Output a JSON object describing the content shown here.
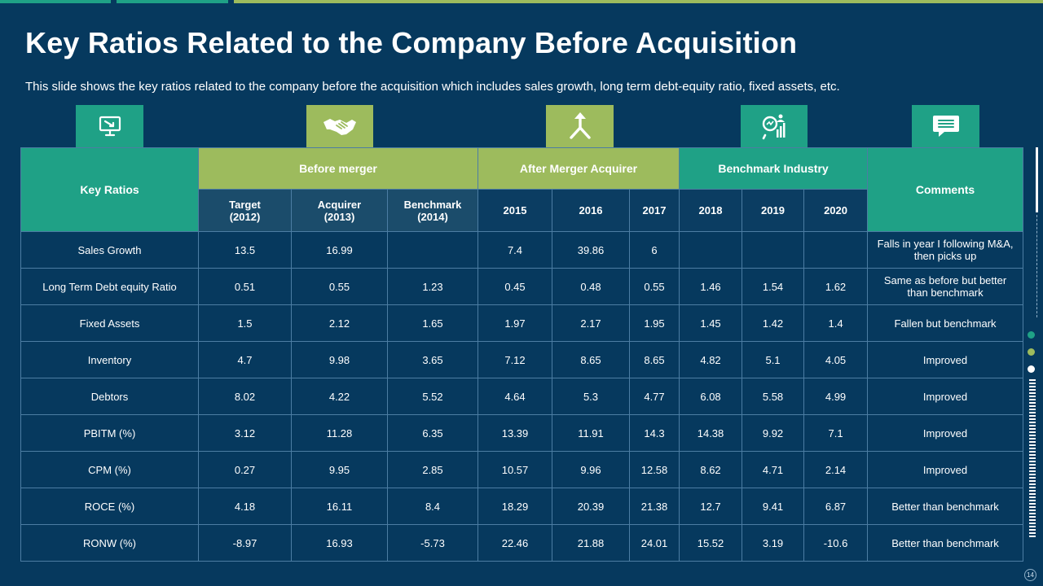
{
  "slide": {
    "title": "Key Ratios Related to the Company Before Acquisition",
    "subtitle": "This slide shows the key ratios related to the company before the acquisition which includes sales growth, long term debt-equity ratio, fixed assets, etc.",
    "page_number": "14"
  },
  "icons": [
    {
      "name": "presentation-screen-icon",
      "color": "#1fa186"
    },
    {
      "name": "handshake-icon",
      "color": "#9dbb5d"
    },
    {
      "name": "merge-arrows-icon",
      "color": "#9dbb5d"
    },
    {
      "name": "analytics-magnifier-icon",
      "color": "#1fa186"
    },
    {
      "name": "chat-bubble-icon",
      "color": "#1fa186"
    }
  ],
  "colors": {
    "background": "#06395e",
    "teal": "#1fa186",
    "green": "#9dbb5d"
  },
  "table": {
    "header": {
      "key_ratios": "Key Ratios",
      "before_merger": "Before merger",
      "after_merger": "After Merger Acquirer",
      "benchmark_industry": "Benchmark Industry",
      "comments": "Comments"
    },
    "subheaders": [
      {
        "line1": "Target",
        "line2": "(2012)"
      },
      {
        "line1": "Acquirer",
        "line2": "(2013)"
      },
      {
        "line1": "Benchmark",
        "line2": "(2014)"
      },
      {
        "line1": "2015",
        "line2": ""
      },
      {
        "line1": "2016",
        "line2": ""
      },
      {
        "line1": "2017",
        "line2": ""
      },
      {
        "line1": "2018",
        "line2": ""
      },
      {
        "line1": "2019",
        "line2": ""
      },
      {
        "line1": "2020",
        "line2": ""
      }
    ],
    "rows": [
      {
        "label": "Sales Growth",
        "values": [
          "13.5",
          "16.99",
          "",
          "7.4",
          "39.86",
          "6",
          "",
          "",
          ""
        ],
        "comment": "Falls in year I following M&A, then picks up"
      },
      {
        "label": "Long Term  Debt equity Ratio",
        "values": [
          "0.51",
          "0.55",
          "1.23",
          "0.45",
          "0.48",
          "0.55",
          "1.46",
          "1.54",
          "1.62"
        ],
        "comment": "Same as before  but better than benchmark"
      },
      {
        "label": "Fixed Assets",
        "values": [
          "1.5",
          "2.12",
          "1.65",
          "1.97",
          "2.17",
          "1.95",
          "1.45",
          "1.42",
          "1.4"
        ],
        "comment": "Fallen but benchmark"
      },
      {
        "label": "Inventory",
        "values": [
          "4.7",
          "9.98",
          "3.65",
          "7.12",
          "8.65",
          "8.65",
          "4.82",
          "5.1",
          "4.05"
        ],
        "comment": "Improved"
      },
      {
        "label": "Debtors",
        "values": [
          "8.02",
          "4.22",
          "5.52",
          "4.64",
          "5.3",
          "4.77",
          "6.08",
          "5.58",
          "4.99"
        ],
        "comment": "Improved"
      },
      {
        "label": "PBITM (%)",
        "values": [
          "3.12",
          "11.28",
          "6.35",
          "13.39",
          "11.91",
          "14.3",
          "14.38",
          "9.92",
          "7.1"
        ],
        "comment": "Improved"
      },
      {
        "label": "CPM (%)",
        "values": [
          "0.27",
          "9.95",
          "2.85",
          "10.57",
          "9.96",
          "12.58",
          "8.62",
          "4.71",
          "2.14"
        ],
        "comment": "Improved"
      },
      {
        "label": "ROCE (%)",
        "values": [
          "4.18",
          "16.11",
          "8.4",
          "18.29",
          "20.39",
          "21.38",
          "12.7",
          "9.41",
          "6.87"
        ],
        "comment": "Better than benchmark"
      },
      {
        "label": "RONW (%)",
        "values": [
          "-8.97",
          "16.93",
          "-5.73",
          "22.46",
          "21.88",
          "24.01",
          "15.52",
          "3.19",
          "-10.6"
        ],
        "comment": "Better than benchmark"
      }
    ]
  }
}
